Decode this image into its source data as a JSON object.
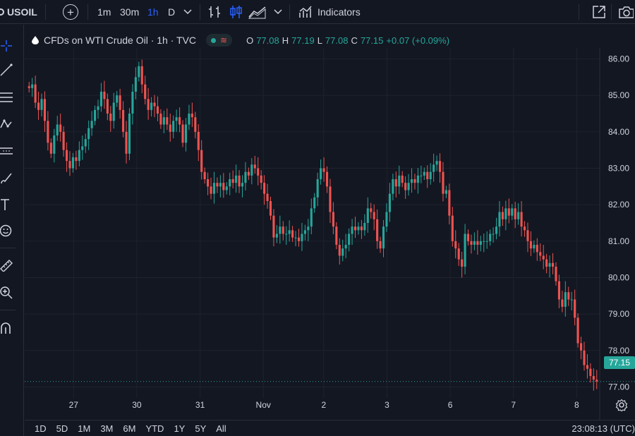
{
  "toolbar": {
    "symbol": "USOIL",
    "intervals": [
      "1m",
      "30m",
      "1h",
      "D"
    ],
    "active_interval": "1h",
    "indicators_label": "Indicators"
  },
  "legend": {
    "title": "CFDs on WTI Crude Oil · 1h · TVC",
    "open_key": "O",
    "open": "77.08",
    "high_key": "H",
    "high": "77.19",
    "low_key": "L",
    "low": "77.08",
    "close_key": "C",
    "close": "77.15",
    "change": "+0.07 (+0.09%)"
  },
  "price_axis": {
    "ticks": [
      "86.00",
      "85.00",
      "84.00",
      "83.00",
      "82.00",
      "81.00",
      "80.00",
      "79.00",
      "78.00",
      "77.00"
    ],
    "current_price": "77.15"
  },
  "time_axis": {
    "ticks": [
      "27",
      "30",
      "31",
      "Nov",
      "2",
      "3",
      "6",
      "7",
      "8"
    ]
  },
  "bottom": {
    "ranges": [
      "1D",
      "5D",
      "1M",
      "3M",
      "6M",
      "YTD",
      "1Y",
      "5Y",
      "All"
    ],
    "clock": "23:08:13 (UTC)"
  },
  "colors": {
    "background": "#131722",
    "up": "#26a69a",
    "down": "#ef5350",
    "grid": "#1e222d",
    "accent": "#2962ff"
  },
  "chart_data": {
    "type": "candlestick",
    "title": "CFDs on WTI Crude Oil · 1h · TVC",
    "ylim": [
      76.7,
      86.3
    ],
    "x_ticks": [
      "27",
      "30",
      "31",
      "Nov",
      "2",
      "3",
      "6",
      "7",
      "8"
    ],
    "y_ticks": [
      86,
      85,
      84,
      83,
      82,
      81,
      80,
      79,
      78,
      77
    ],
    "last_price": 77.15,
    "closes": [
      85.2,
      85.3,
      84.8,
      84.6,
      84.9,
      84.3,
      83.7,
      83.4,
      83.9,
      84.2,
      84.0,
      83.5,
      83.2,
      83.0,
      83.3,
      83.2,
      83.5,
      83.6,
      83.8,
      84.1,
      84.3,
      84.6,
      84.7,
      85.1,
      84.9,
      84.5,
      84.3,
      84.8,
      85.0,
      84.6,
      84.0,
      83.4,
      84.5,
      85.1,
      85.5,
      85.8,
      85.3,
      84.9,
      84.6,
      84.8,
      84.7,
      84.5,
      84.2,
      84.4,
      84.2,
      84.0,
      84.3,
      84.4,
      84.2,
      83.7,
      84.2,
      84.5,
      84.4,
      84.0,
      83.5,
      82.9,
      82.7,
      82.5,
      82.3,
      82.6,
      82.5,
      82.6,
      82.4,
      82.5,
      82.7,
      82.6,
      82.8,
      82.5,
      82.6,
      82.9,
      82.8,
      83.1,
      83.0,
      82.8,
      82.6,
      82.3,
      82.1,
      81.7,
      81.1,
      81.2,
      81.4,
      81.2,
      81.2,
      81.3,
      81.1,
      81.1,
      81.0,
      81.2,
      81.3,
      81.4,
      81.9,
      82.2,
      82.7,
      83.0,
      82.9,
      82.5,
      81.8,
      81.4,
      80.9,
      80.6,
      80.8,
      80.9,
      81.2,
      81.4,
      81.3,
      81.4,
      81.3,
      81.5,
      81.9,
      81.8,
      81.6,
      81.0,
      80.8,
      81.4,
      81.8,
      82.3,
      82.7,
      82.5,
      82.8,
      82.6,
      82.4,
      82.6,
      82.7,
      82.6,
      82.8,
      82.8,
      82.9,
      82.7,
      82.9,
      83.1,
      83.2,
      82.9,
      82.3,
      82.4,
      81.7,
      81.0,
      80.8,
      80.5,
      80.3,
      81.2,
      81.0,
      80.9,
      81.0,
      80.9,
      81.0,
      81.0,
      81.0,
      81.2,
      81.2,
      81.4,
      81.8,
      81.6,
      81.9,
      81.7,
      81.9,
      81.6,
      81.8,
      81.4,
      81.3,
      81.0,
      80.8,
      80.9,
      80.7,
      80.6,
      80.5,
      80.3,
      80.4,
      80.3,
      79.9,
      79.4,
      79.2,
      79.6,
      79.4,
      79.4,
      78.9,
      78.2,
      78.0,
      77.6,
      77.5,
      77.3,
      77.2,
      77.15
    ]
  }
}
